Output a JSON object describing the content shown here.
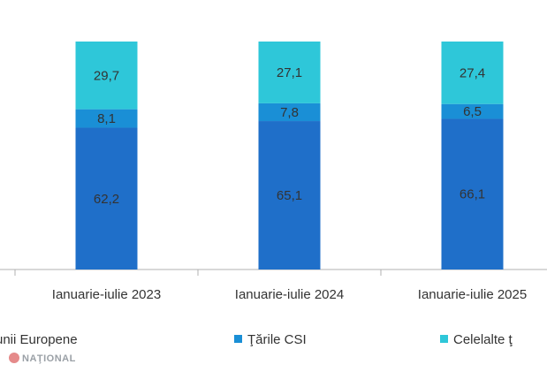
{
  "chart_data": {
    "type": "bar",
    "stacked": true,
    "categories": [
      "Ianuarie-iulie 2023",
      "Ianuarie-iulie 2024",
      "Ianuarie-iulie 2025"
    ],
    "series": [
      {
        "name": "unii Europene",
        "color": "#1f6fc9",
        "values": [
          "62,2",
          "65,1",
          "66,1"
        ]
      },
      {
        "name": "Ţările CSI",
        "color": "#1a8fd6",
        "values": [
          "8,1",
          "7,8",
          "6,5"
        ]
      },
      {
        "name": "Celelalte ţ",
        "color": "#2ec7d9",
        "values": [
          "29,7",
          "27,1",
          "27,4"
        ]
      }
    ],
    "ylim": [
      0,
      100
    ],
    "legend_position": "bottom"
  },
  "watermark": {
    "text": "NAŢIONAL"
  }
}
